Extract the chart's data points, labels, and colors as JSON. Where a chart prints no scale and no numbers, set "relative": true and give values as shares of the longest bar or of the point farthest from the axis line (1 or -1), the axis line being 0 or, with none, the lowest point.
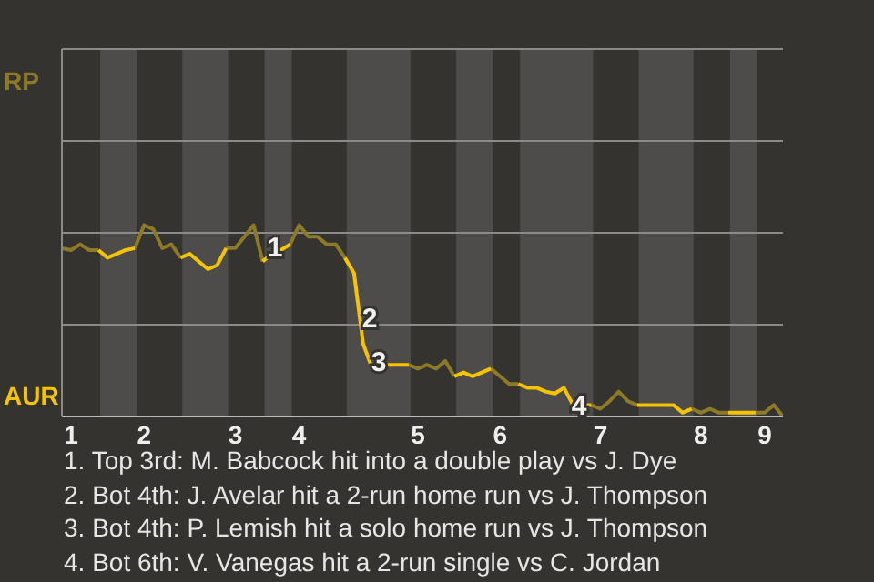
{
  "chart_data": {
    "type": "line",
    "relative": true,
    "categories": [
      null,
      "1",
      null,
      null,
      null,
      null,
      null,
      null,
      null,
      "2",
      null,
      null,
      null,
      null,
      null,
      null,
      null,
      null,
      null,
      "3",
      null,
      null,
      null,
      null,
      null,
      null,
      "4",
      null,
      null,
      null,
      null,
      null,
      null,
      null,
      null,
      null,
      null,
      null,
      null,
      "5",
      null,
      null,
      null,
      null,
      null,
      null,
      null,
      null,
      "6",
      null,
      null,
      null,
      null,
      null,
      null,
      null,
      null,
      null,
      null,
      "7",
      null,
      null,
      null,
      null,
      null,
      null,
      null,
      null,
      null,
      null,
      "8",
      null,
      null,
      null,
      null,
      null,
      null,
      "9",
      null,
      null
    ],
    "series": [
      {
        "name": "RP",
        "color": "#8c7a28",
        "values": [
          0.88,
          0.87,
          0.9,
          0.87,
          0.87,
          null,
          null,
          null,
          0.88,
          1,
          0.98,
          0.88,
          0.9,
          0.83,
          null,
          null,
          null,
          null,
          0.88,
          0.88,
          0.94,
          1,
          0.81,
          null,
          null,
          0.9,
          1,
          0.94,
          0.94,
          0.9,
          0.9,
          0.83,
          null,
          null,
          null,
          null,
          null,
          null,
          0.27,
          0.25,
          0.27,
          0.25,
          0.29,
          0.21,
          null,
          null,
          null,
          0.25,
          0.21,
          0.17,
          0.17,
          null,
          null,
          null,
          null,
          null,
          null,
          null,
          0.06,
          0.04,
          0.08,
          0.13,
          0.08,
          0.06,
          null,
          null,
          null,
          null,
          null,
          0.04,
          0.02,
          0.04,
          0.02,
          0.02,
          null,
          null,
          0.02,
          0.02,
          0.06,
          0
        ]
      },
      {
        "name": "AUR",
        "color": "#f5c400",
        "values": [
          null,
          null,
          null,
          null,
          0.87,
          0.83,
          0.85,
          0.87,
          0.88,
          null,
          null,
          null,
          null,
          0.83,
          0.85,
          0.81,
          0.77,
          0.79,
          0.88,
          null,
          null,
          null,
          0.81,
          0.85,
          0.87,
          0.9,
          null,
          null,
          null,
          null,
          null,
          0.83,
          0.75,
          0.38,
          0.25,
          0.27,
          0.27,
          0.27,
          0.27,
          null,
          null,
          null,
          null,
          0.21,
          0.23,
          0.21,
          0.23,
          0.25,
          null,
          null,
          0.17,
          0.15,
          0.15,
          0.13,
          0.12,
          0.15,
          0.06,
          0.06,
          0.06,
          null,
          null,
          null,
          null,
          0.06,
          0.06,
          0.06,
          0.06,
          0.06,
          0.02,
          0.04,
          null,
          null,
          null,
          0.02,
          0.02,
          0.02,
          0.02,
          null,
          null,
          null
        ]
      }
    ],
    "legend": "left",
    "marker": "none",
    "line_style": "solid",
    "ref_lines": [
      {
        "axis": "y",
        "value": 0.48,
        "color": "#8a8a88"
      },
      {
        "axis": "y",
        "value": 0.96,
        "color": "#8a8a88"
      },
      {
        "axis": "y",
        "value": 1.44,
        "color": "#8a8a88"
      }
    ],
    "annotations": [
      "1",
      "2",
      "3",
      "4",
      "1. Top 3rd: M. Babcock hit into a double play vs J. Dye",
      "2. Bot 4th: J. Avelar hit a 2-run home run vs J. Thompson",
      "3. Bot 4th: P. Lemish hit a solo home run vs J. Thompson",
      "4. Bot 6th: V. Vanegas hit a 2-run single vs C. Jordan"
    ]
  }
}
